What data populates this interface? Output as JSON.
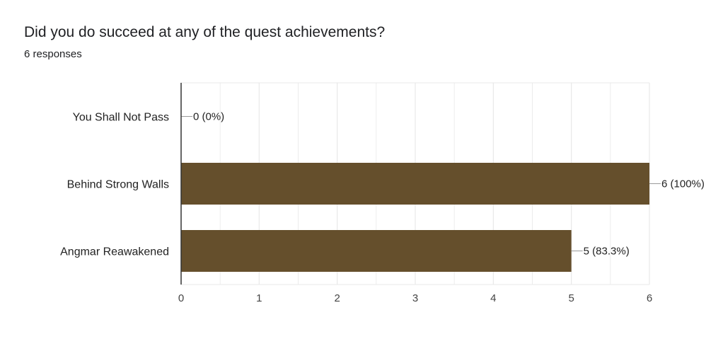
{
  "question": {
    "title": "Did you do succeed at any of the quest achievements?",
    "response_count": "6 responses"
  },
  "colors": {
    "bar": "#654f2c",
    "grid": "#e8e8e8",
    "axis": "#333333",
    "connector": "#999999"
  },
  "chart_data": {
    "type": "bar",
    "orientation": "horizontal",
    "title": "",
    "categories": [
      "You Shall Not Pass",
      "Behind Strong Walls",
      "Angmar Reawakened"
    ],
    "values": [
      0,
      6,
      5
    ],
    "data_labels": [
      "0 (0%)",
      "6 (100%)",
      "5 (83.3%)"
    ],
    "x_ticks": [
      "0",
      "1",
      "2",
      "3",
      "4",
      "5",
      "6"
    ],
    "xlim": [
      0,
      6
    ],
    "grid": true,
    "legend": "none"
  }
}
